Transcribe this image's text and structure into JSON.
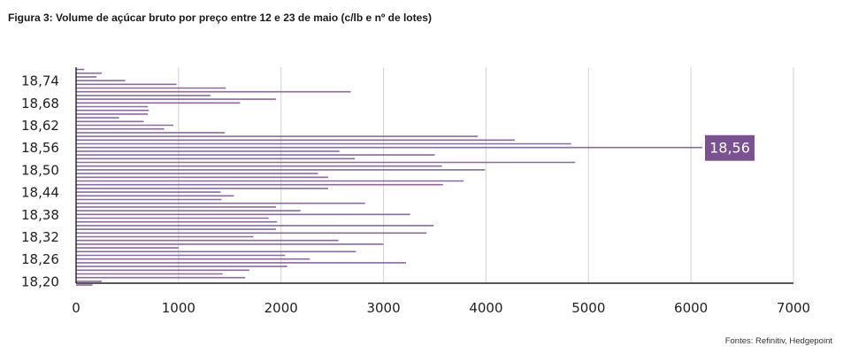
{
  "title": "Figura 3: Volume de açúcar bruto por preço entre 12 e 23 de maio (c/lb e nº de lotes)",
  "source": "Fontes: Refinitiv, Hedgepoint",
  "colors": {
    "bar": "#8b6a9e",
    "callout": "#7a5290",
    "grid": "#d9d9d9",
    "axis": "#222222"
  },
  "chart_data": {
    "type": "bar",
    "orientation": "horizontal",
    "title": "Figura 3: Volume de açúcar bruto por preço entre 12 e 23 de maio (c/lb e nº de lotes)",
    "xlabel": "",
    "ylabel": "",
    "xlim": [
      0,
      7000
    ],
    "x_ticks": [
      "0",
      "1000",
      "2000",
      "3000",
      "4000",
      "5000",
      "6000",
      "7000"
    ],
    "y_tick_labels": [
      "18,74",
      "18,68",
      "18,62",
      "18,56",
      "18,50",
      "18,44",
      "18,38",
      "18,32",
      "18,26",
      "18,20"
    ],
    "grid": "vertical",
    "annotation": "18,56",
    "annotation_category": "18,56",
    "categories": [
      "18,77",
      "18,76",
      "18,75",
      "18,74",
      "18,73",
      "18,72",
      "18,71",
      "18,70",
      "18,69",
      "18,68",
      "18,67",
      "18,66",
      "18,65",
      "18,64",
      "18,63",
      "18,62",
      "18,61",
      "18,60",
      "18,59",
      "18,58",
      "18,57",
      "18,56",
      "18,55",
      "18,54",
      "18,53",
      "18,52",
      "18,51",
      "18,50",
      "18,49",
      "18,48",
      "18,47",
      "18,46",
      "18,45",
      "18,44",
      "18,43",
      "18,42",
      "18,41",
      "18,40",
      "18,39",
      "18,38",
      "18,37",
      "18,36",
      "18,35",
      "18,34",
      "18,33",
      "18,32",
      "18,31",
      "18,30",
      "18,29",
      "18,28",
      "18,27",
      "18,26",
      "18,25",
      "18,24",
      "18,23",
      "18,22",
      "18,21",
      "18,20",
      "18,19"
    ],
    "values": [
      80,
      250,
      200,
      480,
      980,
      1460,
      2680,
      1310,
      1950,
      1600,
      700,
      710,
      700,
      420,
      660,
      950,
      860,
      1450,
      3920,
      4280,
      4830,
      6110,
      2570,
      3500,
      2720,
      4870,
      3570,
      3990,
      2360,
      2460,
      3780,
      3580,
      2460,
      1410,
      1540,
      1420,
      2820,
      1950,
      2190,
      3260,
      1880,
      1960,
      3490,
      1950,
      3420,
      1730,
      2560,
      3000,
      1000,
      2730,
      2040,
      2280,
      3220,
      2060,
      1690,
      1430,
      1650,
      250,
      160
    ]
  }
}
